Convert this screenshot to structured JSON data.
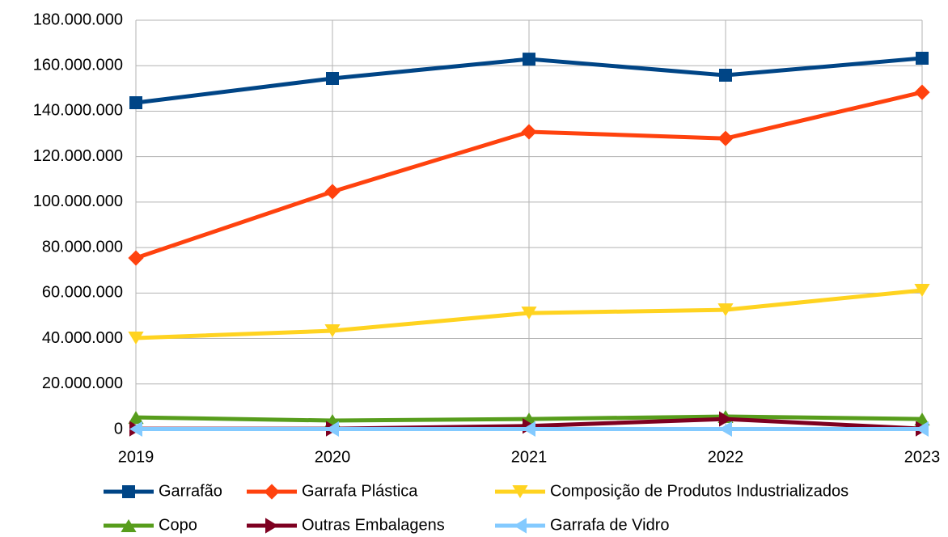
{
  "chart_data": {
    "type": "line",
    "x": [
      2019,
      2020,
      2021,
      2022,
      2023
    ],
    "xlim": [
      2019,
      2023
    ],
    "xticks": [
      2019,
      2020,
      2021,
      2022,
      2023
    ],
    "ylim": [
      0,
      180000000
    ],
    "yticks": [
      0,
      {
        "value": 20000000,
        "label": "20.000.000"
      },
      {
        "value": 40000000,
        "label": "40.000.000"
      },
      {
        "value": 60000000,
        "label": "60.000.000"
      },
      {
        "value": 80000000,
        "label": "80.000.000"
      },
      {
        "value": 100000000,
        "label": "100.000.000"
      },
      {
        "value": 120000000,
        "label": "120.000.000"
      },
      {
        "value": 140000000,
        "label": "140.000.000"
      },
      {
        "value": 160000000,
        "label": "160.000.000"
      },
      {
        "value": 180000000,
        "label": "180.000.000"
      }
    ],
    "grid": true,
    "legend": "bottom",
    "series": [
      {
        "name": "Garrafão",
        "color": "#004586",
        "marker": "square",
        "values": [
          143700000,
          154400000,
          162900000,
          155800000,
          163300000
        ]
      },
      {
        "name": "Garrafa Plástica",
        "color": "#ff420e",
        "marker": "diamond",
        "values": [
          75400000,
          104600000,
          130900000,
          128000000,
          148300000
        ]
      },
      {
        "name": "Composição de Produtos Industrializados",
        "color": "#ffd320",
        "marker": "triangle-down",
        "values": [
          40200000,
          43400000,
          51200000,
          52600000,
          61200000
        ]
      },
      {
        "name": "Copo",
        "color": "#579d1c",
        "marker": "triangle-up",
        "values": [
          5300000,
          3900000,
          4600000,
          5700000,
          4600000
        ]
      },
      {
        "name": "Outras Embalagens",
        "color": "#7e0021",
        "marker": "triangle-right",
        "values": [
          300000,
          300000,
          1500000,
          4600000,
          300000
        ]
      },
      {
        "name": "Garrafa de Vidro",
        "color": "#83caff",
        "marker": "triangle-left",
        "values": [
          200000,
          200000,
          200000,
          200000,
          200000
        ]
      }
    ]
  }
}
